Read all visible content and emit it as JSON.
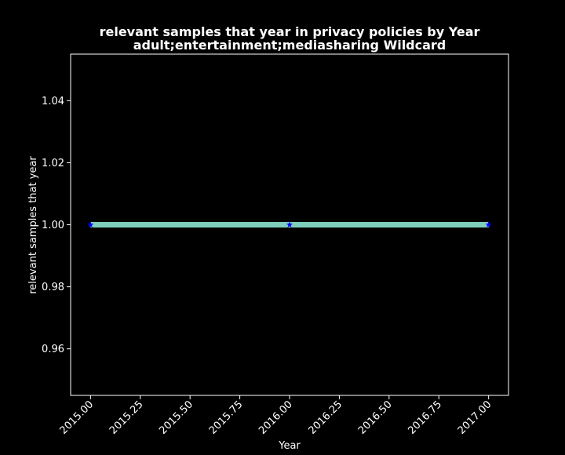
{
  "chart_data": {
    "type": "line",
    "title_line1": "relevant samples that year in privacy policies by Year",
    "title_line2": "adult;entertainment;mediasharing Wildcard",
    "xlabel": "Year",
    "ylabel": "relevant samples that year",
    "x": [
      2015,
      2016,
      2017
    ],
    "series": [
      {
        "values": [
          1.0,
          1.0,
          1.0
        ],
        "line_color": "#7fcdbb",
        "marker_color": "#0000ff",
        "marker": "star"
      }
    ],
    "xlim": [
      2014.9,
      2017.1
    ],
    "ylim": [
      0.945,
      1.055
    ],
    "xticks": [
      2015.0,
      2015.25,
      2015.5,
      2015.75,
      2016.0,
      2016.25,
      2016.5,
      2016.75,
      2017.0
    ],
    "xtick_labels": [
      "2015.00",
      "2015.25",
      "2015.50",
      "2015.75",
      "2016.00",
      "2016.25",
      "2016.50",
      "2016.75",
      "2017.00"
    ],
    "yticks": [
      0.96,
      0.98,
      1.0,
      1.02,
      1.04
    ],
    "ytick_labels": [
      "0.96",
      "0.98",
      "1.00",
      "1.02",
      "1.04"
    ],
    "grid": false,
    "background_color": "#000000",
    "text_color": "#ffffff"
  }
}
